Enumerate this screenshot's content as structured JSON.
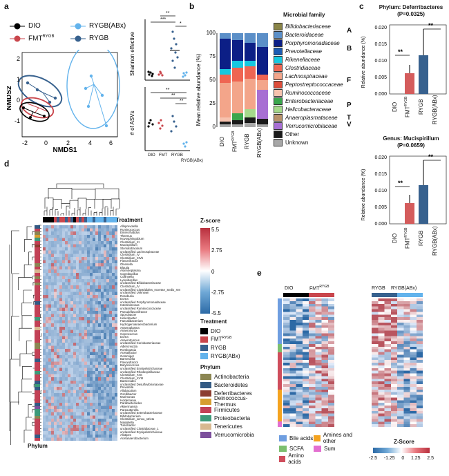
{
  "panels": {
    "a": {
      "label": "a",
      "legend": {
        "DIO": "DIO",
        "FMT": "FMT",
        "FMT_sup": "RYGB",
        "RYGB_ABx": "RYGB(ABx)",
        "RYGB": "RYGB"
      },
      "nmds": {
        "xlabel": "NMDS1",
        "ylabel": "NMDS2",
        "xticks": [
          "-2",
          "0",
          "2",
          "4",
          "6"
        ],
        "yticks": [
          "2",
          "1",
          "0",
          "-1"
        ]
      },
      "shannon": {
        "ylabel": "Shannon effective",
        "sig": [
          "**",
          "***",
          "*"
        ]
      },
      "asv": {
        "ylabel": "# of ASVs",
        "sig": [
          "**",
          "**",
          "**"
        ],
        "xticks": [
          "DIO",
          "FMT",
          "RYGB",
          "RYGB(ABx)"
        ],
        "fmt_sup": "RYGB"
      }
    },
    "b": {
      "label": "b",
      "ylabel": "Mean relative abundance (%)",
      "yticks": [
        "0",
        "25",
        "50",
        "75",
        "100"
      ],
      "categories": [
        "DIO",
        "FMT",
        "RYGB",
        "RYGB(ABx)"
      ],
      "fmt_sup": "RYGB",
      "legend_title": "Microbial family",
      "families": [
        {
          "name": "Bifidobacteriaceae",
          "color": "#8a8548"
        },
        {
          "name": "Bacteroidaceae",
          "color": "#5b8fc8"
        },
        {
          "name": "Porphyromonadaceae",
          "color": "#0c1f86"
        },
        {
          "name": "Prevotellaceae",
          "color": "#1d5cb3"
        },
        {
          "name": "Rikenellaceae",
          "color": "#16c8e0"
        },
        {
          "name": "Clostridiaceae",
          "color": "#ef6552"
        },
        {
          "name": "Lachnospiraceae",
          "color": "#f3a58a"
        },
        {
          "name": "Peptostreptococcaceae",
          "color": "#dc4d3b"
        },
        {
          "name": "Ruminococcaceae",
          "color": "#f6c2ae"
        },
        {
          "name": "Enterobacteriaceae",
          "color": "#3aa64d"
        },
        {
          "name": "Helicobacteraceae",
          "color": "#a5d98b"
        },
        {
          "name": "Anaeroplasmataceae",
          "color": "#b8926b"
        },
        {
          "name": "Verrucomicrobiaceae",
          "color": "#a76fd3"
        },
        {
          "name": "Other",
          "color": "#1a1a1a"
        },
        {
          "name": "Unknown",
          "color": "#a7a7a7"
        }
      ],
      "phylum_letters": [
        "A",
        "B",
        "F",
        "P",
        "T",
        "V"
      ]
    },
    "c": {
      "label": "c",
      "top": {
        "title": "Phylum: Deferribacteres",
        "pval": "(P=0.0325)",
        "yticks": [
          "0.000",
          "0.005",
          "0.010",
          "0.015",
          "0.020"
        ]
      },
      "bottom": {
        "title": "Genus: Mucispirillum",
        "pval": "(P=0.0659)",
        "yticks": [
          "0.000",
          "0.005",
          "0.010",
          "0.015",
          "0.020"
        ]
      },
      "ylabel": "Relative abundance (%)",
      "xticks": [
        "DIO",
        "FMT",
        "RYGB",
        "RYGB(ABx)"
      ],
      "fmt_sup": "RYGB",
      "sig": [
        "**",
        "**"
      ]
    },
    "d": {
      "label": "d",
      "treatment_label": "Treatment",
      "phylum_label": "Phylum",
      "zscore": {
        "title": "Z-score",
        "ticks": [
          "5.5",
          "2.75",
          "0",
          "-2.75",
          "-5.5"
        ]
      },
      "treatment_legend": {
        "title": "Treatment",
        "items": [
          {
            "name": "DIO",
            "color": "#000000"
          },
          {
            "name": "FMT",
            "sup": "RYGB",
            "color": "#c9464c"
          },
          {
            "name": "RYGB",
            "color": "#37618e"
          },
          {
            "name": "RYGB(ABx)",
            "color": "#63b3ec"
          }
        ]
      },
      "phylum_legend": {
        "title": "Phylum",
        "items": [
          {
            "name": "Actinobacteria",
            "color": "#8b8652"
          },
          {
            "name": "Bacteroidetes",
            "color": "#335a84"
          },
          {
            "name": "Deferribacteres",
            "color": "#8c3d30"
          },
          {
            "name": "Deinococcus-Thermus",
            "color": "#d69e2f"
          },
          {
            "name": "Firmicutes",
            "color": "#c24156"
          },
          {
            "name": "Proteobacteria",
            "color": "#3c9a7a"
          },
          {
            "name": "Tenericutes",
            "color": "#d8b890"
          },
          {
            "name": "Verrucomicrobia",
            "color": "#7c4f9c"
          }
        ]
      },
      "genera": [
        "Alloprevotella",
        "Ruminococcus",
        "Enterorhabdus",
        "Thermus",
        "Novosphingobium",
        "Clostridium_XI",
        "Mucispirillum",
        "Stomatobaculum",
        "unclassified Lachnospiraceae",
        "Clostridium_IV",
        "Clostridium_XIVb",
        "Flavonifractor",
        "Olsenella",
        "Blautia",
        "Asteroleplasma",
        "Coprobacillus",
        "Collinsella",
        "Lysinibacillus",
        "unclassified Bifidobacteriaceae",
        "Clostridium_IV",
        "unclassified Clostridiales_Incertae_Sedis_XIII",
        "unclassified Unknown",
        "Roseburia",
        "Dorea",
        "unclassified Porphyromonadaceae",
        "Intestinimonas",
        "unclassified Ruminococcaceae",
        "Pseudoflavonifractor",
        "Sporobacter",
        "Helicobacter",
        "Faecalibacterium",
        "Hydrogenoanaerobacterium",
        "Anaeroplasma",
        "Anaerovorax",
        "Coprococcus",
        "Dorea",
        "Anaerotruncus",
        "unclassified Coriobacteriaceae",
        "Adlercreutzia",
        "Romboutsia",
        "Acetatifactor",
        "Gemmiger",
        "Barnesiella",
        "Flavonifractor",
        "Butyricicoccus",
        "unclassified Erysipelotrichaceae",
        "unclassified Rhodospirillaceae",
        "Clostridium_XVa",
        "Clostridium_XVIII",
        "Bacteroides",
        "unclassified Desulfovibrionaceae",
        "Prevotella",
        "Allobaculum",
        "Oscillibacter",
        "Murimonas",
        "Holdemania",
        "Parabacteroides",
        "Akkermansia",
        "Parasutterella",
        "unclassified Enterobacteriaceae",
        "Bifidobacterium",
        "Clostridium_sensu_stricto",
        "Massiliella",
        "Turicibacter",
        "unclassified Clostridiaceae_1",
        "unclassified Erysipelotrichaceae",
        "Alistipes",
        "Acetanaerobacterium"
      ]
    },
    "e": {
      "label": "e",
      "groups": [
        {
          "name": "DIO"
        },
        {
          "name": "FMT",
          "sup": "RYGB"
        },
        {
          "name": "RYGB"
        },
        {
          "name": "RYGB(ABx)"
        }
      ],
      "metabolite_legend": [
        {
          "name": "Bile acids",
          "color": "#6f9ee0"
        },
        {
          "name": "Amines and other",
          "color": "#f4a320"
        },
        {
          "name": "SCFA",
          "color": "#7cbf6f"
        },
        {
          "name": "Sum",
          "color": "#e36fd0"
        },
        {
          "name": "Amino acids",
          "color": "#cf4d5c"
        }
      ],
      "zscore": {
        "title": "Z-Score",
        "ticks": [
          "-2.5",
          "-1.25",
          "0",
          "1.25",
          "2.5"
        ]
      }
    }
  }
}
